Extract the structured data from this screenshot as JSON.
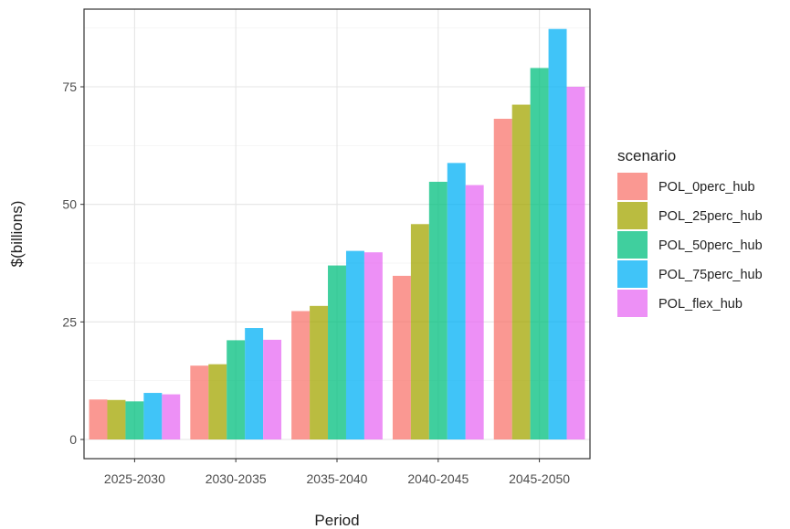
{
  "chart_data": {
    "type": "bar",
    "title": "",
    "xlabel": "Period",
    "ylabel": "$(billions)",
    "categories": [
      "2025-2030",
      "2030-2035",
      "2035-2040",
      "2040-2045",
      "2045-2050"
    ],
    "ylim": [
      0,
      88
    ],
    "yticks": [
      0,
      25,
      50,
      75
    ],
    "grid": true,
    "legend": {
      "title": "scenario",
      "position": "right"
    },
    "series": [
      {
        "name": "POL_0perc_hub",
        "color": "#F8766D",
        "values": [
          8.5,
          15.7,
          27.3,
          34.8,
          68.2
        ]
      },
      {
        "name": "POL_25perc_hub",
        "color": "#A3A500",
        "values": [
          8.4,
          16.0,
          28.4,
          45.8,
          71.2
        ]
      },
      {
        "name": "POL_50perc_hub",
        "color": "#00BF7D",
        "values": [
          8.1,
          21.1,
          37.0,
          54.8,
          79.0
        ]
      },
      {
        "name": "POL_75perc_hub",
        "color": "#00B0F6",
        "values": [
          9.9,
          23.7,
          40.1,
          58.8,
          87.3
        ]
      },
      {
        "name": "POL_flex_hub",
        "color": "#E76BF3",
        "values": [
          9.6,
          21.2,
          39.8,
          54.1,
          75.0
        ]
      }
    ]
  }
}
